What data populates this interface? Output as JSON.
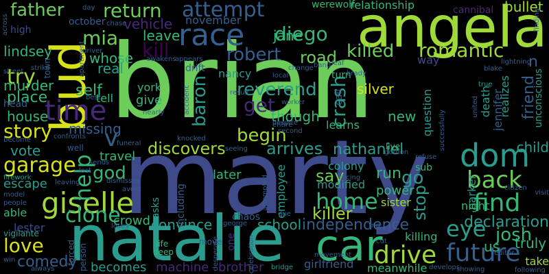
{
  "background": "#000000",
  "palette": {
    "green": "#6ccd5a",
    "lime": "#a0da39",
    "teal": "#2a9d8f",
    "teal2": "#25838e",
    "blue": "#3e4a89",
    "blue2": "#355f8d",
    "purple": "#482878",
    "violet": "#440154",
    "mint": "#35b779",
    "yellow": "#d8e219",
    "aqua": "#1fa187"
  },
  "words": [
    {
      "text": "brian",
      "color": "green"
    },
    {
      "text": "marty",
      "color": "blue"
    },
    {
      "text": "angela",
      "color": "lime"
    },
    {
      "text": "natalie",
      "color": "teal"
    },
    {
      "text": "car",
      "color": "mint"
    },
    {
      "text": "bud",
      "color": "yellow"
    },
    {
      "text": "race",
      "color": "blue2"
    },
    {
      "text": "dom",
      "color": "teal"
    },
    {
      "text": "giselle",
      "color": "lime"
    },
    {
      "text": "time",
      "color": "purple"
    },
    {
      "text": "drive",
      "color": "lime"
    },
    {
      "text": "future",
      "color": "blue2"
    },
    {
      "text": "find",
      "color": "mint"
    },
    {
      "text": "back",
      "color": "green"
    },
    {
      "text": "eye",
      "color": "teal"
    },
    {
      "text": "home",
      "color": "mint"
    },
    {
      "text": "garage",
      "color": "yellow"
    },
    {
      "text": "clone",
      "color": "mint"
    },
    {
      "text": "help",
      "color": "mint"
    },
    {
      "text": "crash",
      "color": "teal"
    },
    {
      "text": "romantic",
      "color": "lime"
    },
    {
      "text": "killed",
      "color": "green"
    },
    {
      "text": "robert",
      "color": "blue2"
    },
    {
      "text": "diego",
      "color": "mint"
    },
    {
      "text": "attempt",
      "color": "blue2"
    },
    {
      "text": "return",
      "color": "green"
    },
    {
      "text": "father",
      "color": "green"
    },
    {
      "text": "story",
      "color": "yellow"
    },
    {
      "text": "love",
      "color": "yellow"
    },
    {
      "text": "try",
      "color": "lime"
    },
    {
      "text": "mia",
      "color": "green"
    },
    {
      "text": "kill",
      "color": "violet"
    },
    {
      "text": "baron",
      "color": "teal"
    },
    {
      "text": "reverend",
      "color": "teal"
    },
    {
      "text": "get",
      "color": "purple"
    },
    {
      "text": "begin",
      "color": "lime"
    },
    {
      "text": "discovers",
      "color": "lime"
    },
    {
      "text": "arrives",
      "color": "teal"
    },
    {
      "text": "nathaniel",
      "color": "teal"
    },
    {
      "text": "independence",
      "color": "blue2"
    },
    {
      "text": "stop",
      "color": "teal"
    },
    {
      "text": "go",
      "color": "teal"
    },
    {
      "text": "god",
      "color": "mint"
    },
    {
      "text": "friend",
      "color": "blue2"
    },
    {
      "text": "declaration",
      "color": "teal"
    },
    {
      "text": "josh",
      "color": "mint"
    },
    {
      "text": "comedy",
      "color": "blue2"
    },
    {
      "text": "killer",
      "color": "lime"
    },
    {
      "text": "say",
      "color": "green"
    },
    {
      "text": "run",
      "color": "mint"
    },
    {
      "text": "school",
      "color": "teal"
    },
    {
      "text": "convince",
      "color": "teal"
    },
    {
      "text": "vehicle",
      "color": "purple"
    },
    {
      "text": "leave",
      "color": "mint"
    },
    {
      "text": "jane",
      "color": "mint"
    },
    {
      "text": "road",
      "color": "green"
    },
    {
      "text": "self",
      "color": "mint"
    },
    {
      "text": "though",
      "color": "mint"
    },
    {
      "text": "silver",
      "color": "yellow"
    },
    {
      "text": "whose",
      "color": "mint"
    },
    {
      "text": "real",
      "color": "teal"
    },
    {
      "text": "missing",
      "color": "blue2"
    },
    {
      "text": "vote",
      "color": "teal"
    },
    {
      "text": "house",
      "color": "mint"
    },
    {
      "text": "place",
      "color": "mint"
    },
    {
      "text": "murder",
      "color": "mint"
    },
    {
      "text": "lindsey",
      "color": "mint"
    },
    {
      "text": "high",
      "color": "blue"
    },
    {
      "text": "escape",
      "color": "teal"
    },
    {
      "text": "travel",
      "color": "mint"
    },
    {
      "text": "crowd",
      "color": "mint"
    },
    {
      "text": "give",
      "color": "mint"
    },
    {
      "text": "tell",
      "color": "mint"
    },
    {
      "text": "york",
      "color": "mint"
    },
    {
      "text": "nancy",
      "color": "teal"
    },
    {
      "text": "drift",
      "color": "blue2"
    },
    {
      "text": "november",
      "color": "blue2"
    },
    {
      "text": "october",
      "color": "blue2"
    },
    {
      "text": "new",
      "color": "mint"
    },
    {
      "text": "learns",
      "color": "mint"
    },
    {
      "text": "colony",
      "color": "teal"
    },
    {
      "text": "later",
      "color": "mint"
    },
    {
      "text": "power",
      "color": "mint"
    },
    {
      "text": "sister",
      "color": "lime"
    },
    {
      "text": "employee",
      "color": "teal"
    },
    {
      "text": "question",
      "color": "teal"
    },
    {
      "text": "parker",
      "color": "teal"
    },
    {
      "text": "death",
      "color": "teal"
    },
    {
      "text": "jennifer",
      "color": "blue2"
    },
    {
      "text": "child",
      "color": "teal"
    },
    {
      "text": "truly",
      "color": "mint"
    },
    {
      "text": "us",
      "color": "mint"
    },
    {
      "text": "take",
      "color": "lime"
    },
    {
      "text": "night",
      "color": "mint"
    },
    {
      "text": "realizes",
      "color": "teal"
    },
    {
      "text": "unconscious",
      "color": "teal"
    },
    {
      "text": "bullet",
      "color": "lime"
    },
    {
      "text": "relationship",
      "color": "mint"
    },
    {
      "text": "werewolf",
      "color": "mint"
    },
    {
      "text": "cannibal",
      "color": "purple"
    },
    {
      "text": "becomes",
      "color": "teal"
    },
    {
      "text": "machine",
      "color": "purple"
    },
    {
      "text": "brother",
      "color": "purple"
    },
    {
      "text": "girlfriend",
      "color": "blue2"
    },
    {
      "text": "meanwhile",
      "color": "mint"
    },
    {
      "text": "killing",
      "color": "mint"
    },
    {
      "text": "modified",
      "color": "teal"
    },
    {
      "text": "asks",
      "color": "teal"
    },
    {
      "text": "including",
      "color": "blue2"
    },
    {
      "text": "lester",
      "color": "blue"
    },
    {
      "text": "vigilante",
      "color": "teal"
    },
    {
      "text": "able",
      "color": "mint"
    },
    {
      "text": "turn",
      "color": "mint"
    },
    {
      "text": "sub",
      "color": "mint"
    },
    {
      "text": "call",
      "color": "blue2"
    },
    {
      "text": "way",
      "color": "blue"
    },
    {
      "text": "chaos",
      "color": "blue2"
    },
    {
      "text": "life",
      "color": "mint"
    },
    {
      "text": "deep",
      "color": "mint"
    },
    {
      "text": "move",
      "color": "blue2"
    },
    {
      "text": "swears",
      "color": "teal"
    },
    {
      "text": "forced",
      "color": "blue2"
    },
    {
      "text": "person",
      "color": "blue2"
    },
    {
      "text": "firework",
      "color": "teal"
    },
    {
      "text": "well",
      "color": "blue2"
    },
    {
      "text": "become",
      "color": "blue2"
    },
    {
      "text": "head",
      "color": "blue2"
    },
    {
      "text": "street",
      "color": "blue2"
    },
    {
      "text": "strike",
      "color": "blue2"
    },
    {
      "text": "town",
      "color": "blue2"
    },
    {
      "text": "chase",
      "color": "blue2"
    },
    {
      "text": "day",
      "color": "blue2"
    },
    {
      "text": "driver",
      "color": "blue2"
    },
    {
      "text": "apartment",
      "color": "blue2"
    },
    {
      "text": "awakens",
      "color": "blue2"
    },
    {
      "text": "appears",
      "color": "blue2"
    },
    {
      "text": "accident",
      "color": "blue2"
    },
    {
      "text": "result",
      "color": "blue2"
    },
    {
      "text": "local",
      "color": "blue2"
    },
    {
      "text": "change",
      "color": "blue2"
    },
    {
      "text": "band",
      "color": "blue2"
    },
    {
      "text": "leaf",
      "color": "blue2"
    },
    {
      "text": "brady",
      "color": "blue2"
    },
    {
      "text": "blake",
      "color": "blue2"
    },
    {
      "text": "lightning",
      "color": "blue2"
    },
    {
      "text": "finding",
      "color": "blue2"
    },
    {
      "text": "true",
      "color": "teal"
    },
    {
      "text": "united",
      "color": "blue2"
    },
    {
      "text": "visit",
      "color": "blue2"
    },
    {
      "text": "citizen",
      "color": "blue2"
    },
    {
      "text": "editor",
      "color": "blue2"
    },
    {
      "text": "following",
      "color": "blue2"
    },
    {
      "text": "showing",
      "color": "blue2"
    },
    {
      "text": "develops",
      "color": "blue2"
    },
    {
      "text": "movement",
      "color": "blue2"
    },
    {
      "text": "bridge",
      "color": "teal"
    },
    {
      "text": "celebration",
      "color": "blue2"
    },
    {
      "text": "george",
      "color": "blue2"
    },
    {
      "text": "desperate",
      "color": "blue2"
    },
    {
      "text": "funeral",
      "color": "blue2"
    },
    {
      "text": "loses",
      "color": "blue2"
    },
    {
      "text": "avoid",
      "color": "blue2"
    },
    {
      "text": "dismisses",
      "color": "blue2"
    },
    {
      "text": "leaving",
      "color": "blue2"
    },
    {
      "text": "sends",
      "color": "blue2"
    },
    {
      "text": "lost",
      "color": "blue2"
    },
    {
      "text": "confronts",
      "color": "blue2"
    },
    {
      "text": "model",
      "color": "blue2"
    },
    {
      "text": "people",
      "color": "blue2"
    },
    {
      "text": "across",
      "color": "blue2"
    },
    {
      "text": "win",
      "color": "blue2"
    },
    {
      "text": "always",
      "color": "blue2"
    },
    {
      "text": "knocked",
      "color": "blue2"
    },
    {
      "text": "seeing",
      "color": "blue2"
    },
    {
      "text": "nearly",
      "color": "blue2"
    },
    {
      "text": "worker",
      "color": "blue2"
    },
    {
      "text": "despite",
      "color": "blue2"
    },
    {
      "text": "second",
      "color": "blue2"
    },
    {
      "text": "entire",
      "color": "blue2"
    },
    {
      "text": "successfully",
      "color": "blue2"
    },
    {
      "text": "refuse",
      "color": "blue2"
    },
    {
      "text": "live",
      "color": "mint"
    },
    {
      "text": "gordon",
      "color": "blue2"
    },
    {
      "text": "racing",
      "color": "blue2"
    },
    {
      "text": "attempted",
      "color": "blue2"
    },
    {
      "text": "due",
      "color": "blue2"
    },
    {
      "text": "trio",
      "color": "blue2"
    },
    {
      "text": "cut",
      "color": "blue2"
    },
    {
      "text": "best",
      "color": "blue2"
    },
    {
      "text": "one",
      "color": "purple"
    },
    {
      "text": "v",
      "color": "blue2"
    },
    {
      "text": "n",
      "color": "blue2"
    }
  ]
}
